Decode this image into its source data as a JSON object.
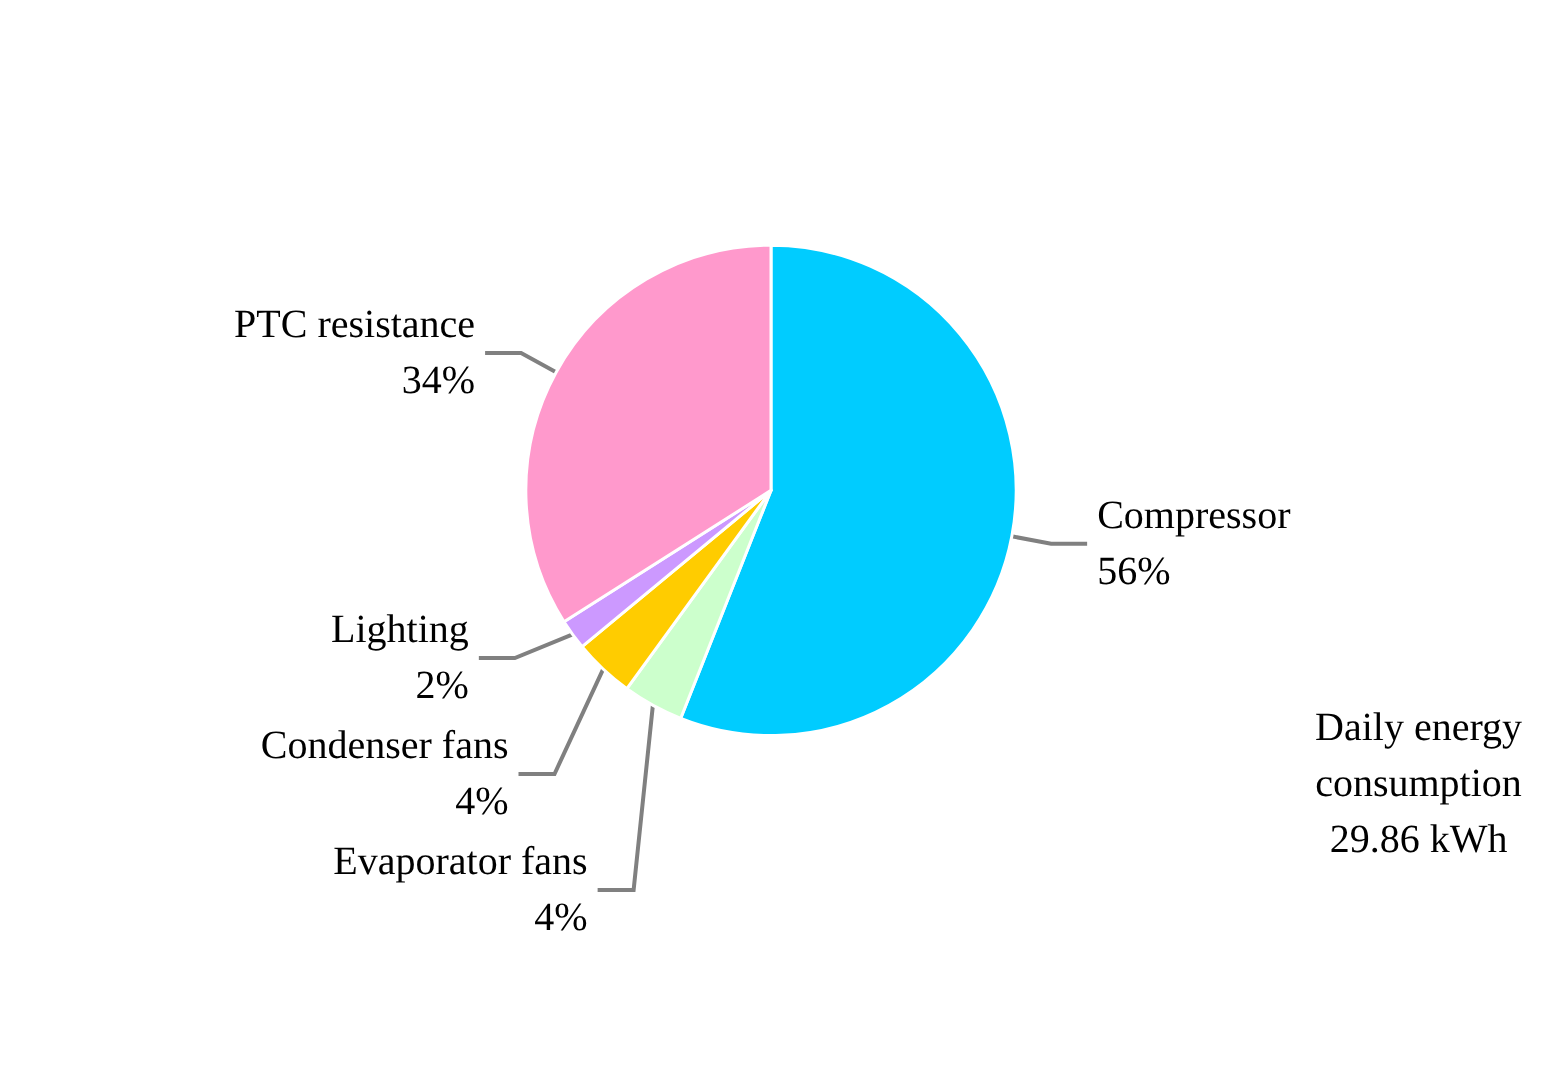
{
  "chart_data": {
    "type": "pie",
    "categories": [
      "Compressor",
      "Evaporator fans",
      "Condenser fans",
      "Lighting",
      "PTC resistance"
    ],
    "values": [
      56,
      4,
      4,
      2,
      34
    ],
    "value_labels": [
      "56%",
      "4%",
      "4%",
      "2%",
      "34%"
    ],
    "colors": [
      "#00ccff",
      "#ccffcc",
      "#ffcc00",
      "#cc99ff",
      "#ff99cc"
    ],
    "annotations": [
      "Daily energy\nconsumption\n29.86 kWh"
    ],
    "legend": false
  }
}
